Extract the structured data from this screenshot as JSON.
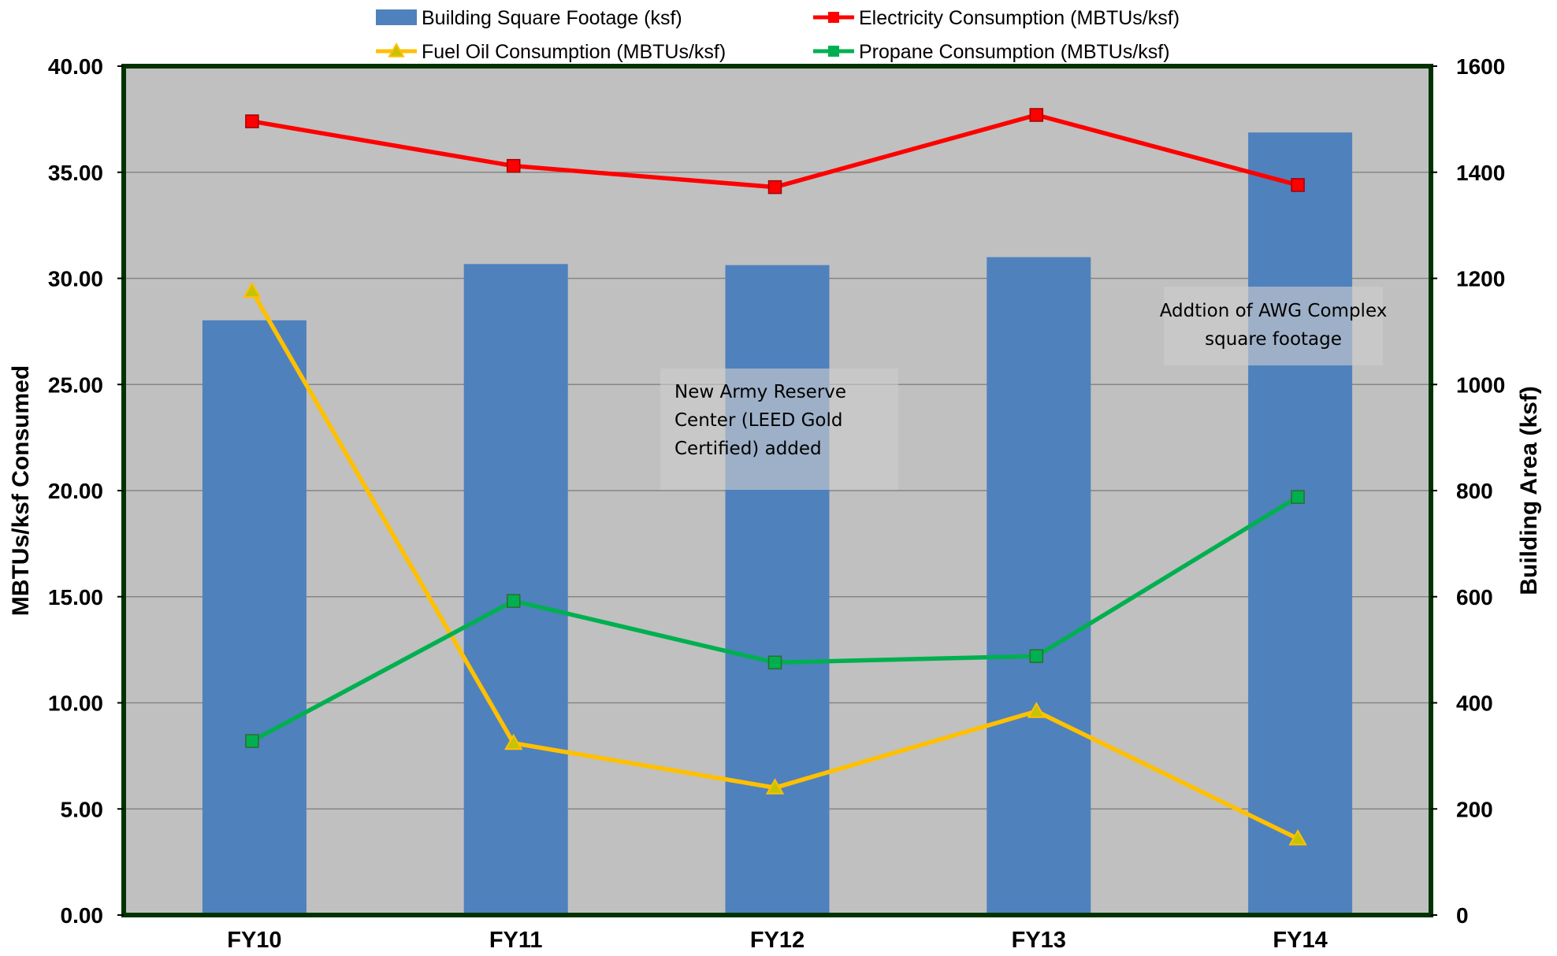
{
  "chart_data": {
    "type": "bar",
    "categories": [
      "FY10",
      "FY11",
      "FY12",
      "FY13",
      "FY14"
    ],
    "bar_series": {
      "name": "Building Square Footage (ksf)",
      "axis": "right",
      "values": [
        1121,
        1227,
        1225,
        1240,
        1475
      ],
      "color": "#4f81bd"
    },
    "line_series": [
      {
        "name": "Electricity Consumption (MBTUs/ksf)",
        "axis": "left",
        "marker": "square",
        "color": "#ff0000",
        "values": [
          37.4,
          35.3,
          34.3,
          37.7,
          34.4
        ]
      },
      {
        "name": "Fuel Oil Consumption (MBTUs/ksf)",
        "axis": "left",
        "marker": "triangle",
        "color": "#ffc000",
        "values": [
          29.4,
          8.1,
          6.0,
          9.6,
          3.6
        ]
      },
      {
        "name": "Propane Consumption (MBTUs/ksf)",
        "axis": "left",
        "marker": "square",
        "color": "#00b050",
        "values": [
          8.2,
          14.8,
          11.9,
          12.2,
          19.7
        ]
      }
    ],
    "ylabel": "MBTUs/ksf Consumed",
    "y2label": "Building Area (ksf)",
    "ylim": [
      0,
      40
    ],
    "y2lim": [
      0,
      1600
    ],
    "yticks": [
      "0.00",
      "5.00",
      "10.00",
      "15.00",
      "20.00",
      "25.00",
      "30.00",
      "35.00",
      "40.00"
    ],
    "y2ticks": [
      "0",
      "200",
      "400",
      "600",
      "800",
      "1000",
      "1200",
      "1400",
      "1600"
    ],
    "grid": true,
    "legend_position": "top",
    "plot_background": "#c0c0c0",
    "plot_border_color": "#003300",
    "annotations": [
      {
        "id": "note-army-reserve",
        "lines": [
          "New Army Reserve",
          "Center (LEED Gold",
          "Certified) added"
        ]
      },
      {
        "id": "note-awg",
        "lines": [
          "Addtion of AWG Complex",
          "square footage"
        ]
      }
    ]
  }
}
